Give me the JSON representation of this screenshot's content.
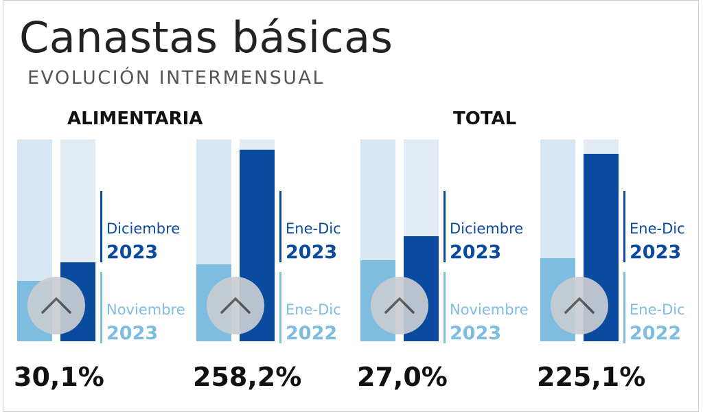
{
  "title": "Canastas básicas",
  "subtitle": "EVOLUCIÓN INTERMENSUAL",
  "colors": {
    "current": "#0a4a9f",
    "previous": "#7fbde0",
    "track_light": "#d6e7f4",
    "track_pale": "#e3ebf5",
    "circle": "#c9cdd1"
  },
  "chart_data": [
    {
      "type": "bar",
      "title": "ALIMENTARIA",
      "panels": [
        {
          "previous_label": {
            "period": "Noviembre",
            "year": "2023"
          },
          "current_label": {
            "period": "Diciembre",
            "year": "2023"
          },
          "previous_level": 0.3,
          "current_level": 0.39,
          "change": "30,1%"
        },
        {
          "previous_label": {
            "period": "Ene-Dic",
            "year": "2022"
          },
          "current_label": {
            "period": "Ene-Dic",
            "year": "2023"
          },
          "previous_level": 0.38,
          "current_level": 0.95,
          "change": "258,2%"
        }
      ]
    },
    {
      "type": "bar",
      "title": "TOTAL",
      "panels": [
        {
          "previous_label": {
            "period": "Noviembre",
            "year": "2023"
          },
          "current_label": {
            "period": "Diciembre",
            "year": "2023"
          },
          "previous_level": 0.4,
          "current_level": 0.52,
          "change": "27,0%"
        },
        {
          "previous_label": {
            "period": "Ene-Dic",
            "year": "2022"
          },
          "current_label": {
            "period": "Ene-Dic",
            "year": "2023"
          },
          "previous_level": 0.41,
          "current_level": 0.93,
          "change": "225,1%"
        }
      ]
    }
  ]
}
